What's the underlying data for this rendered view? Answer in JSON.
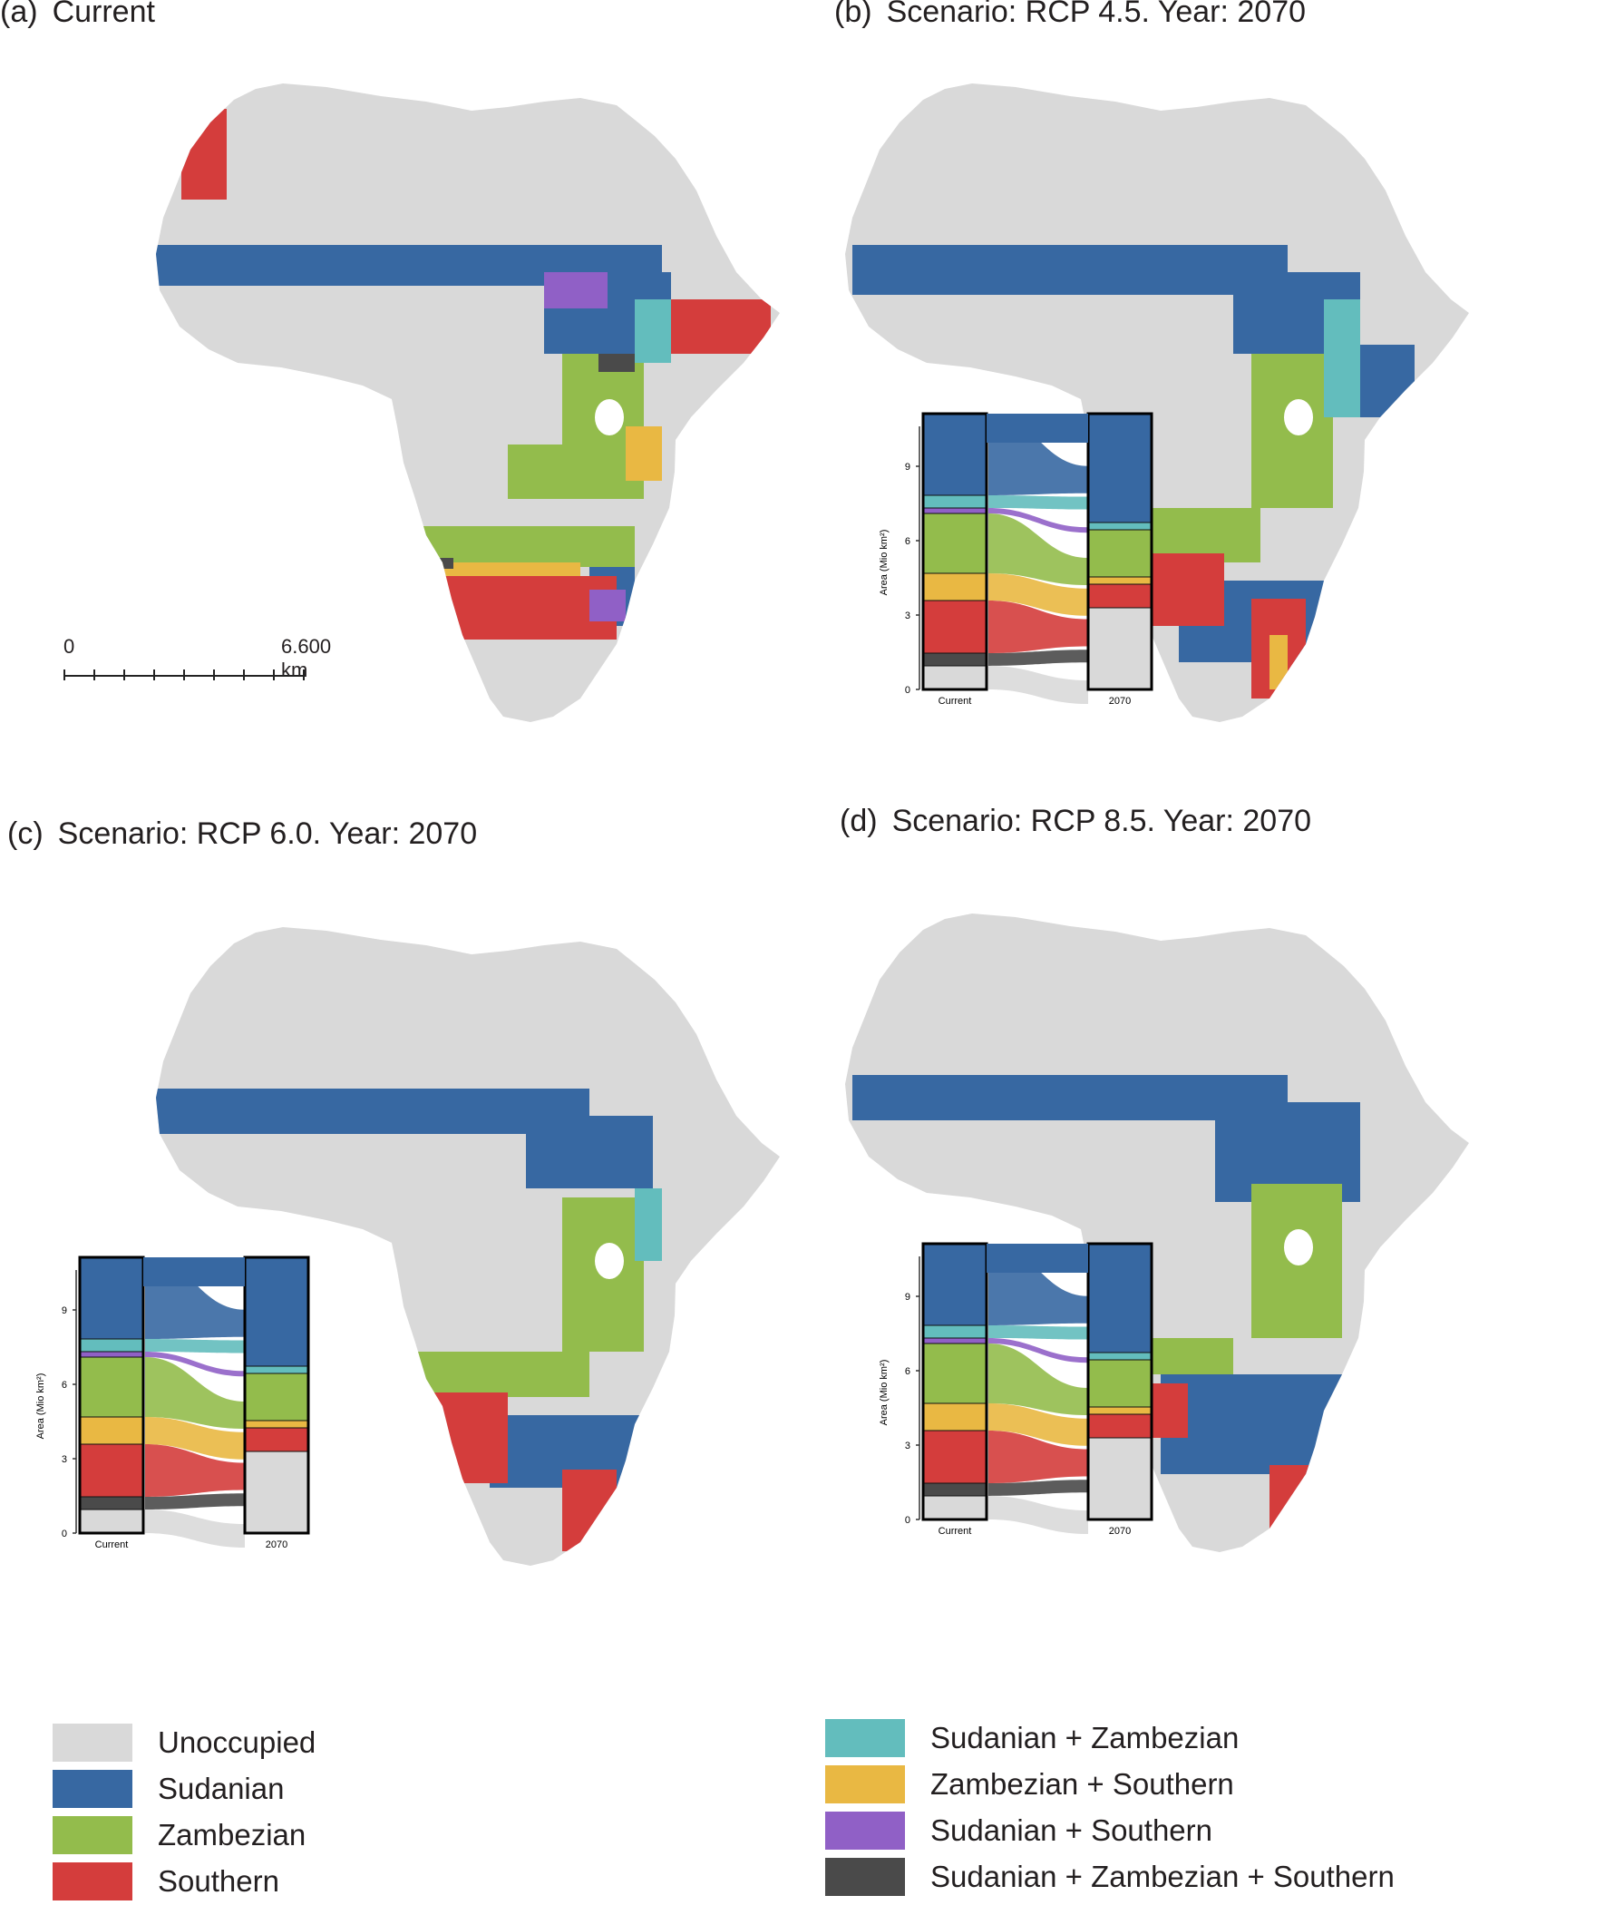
{
  "panels": [
    {
      "id": "a",
      "label": "(a)",
      "title": "Current"
    },
    {
      "id": "b",
      "label": "(b)",
      "title": "Scenario: RCP 4.5. Year: 2070"
    },
    {
      "id": "c",
      "label": "(c)",
      "title": "Scenario: RCP 6.0. Year: 2070"
    },
    {
      "id": "d",
      "label": "(d)",
      "title": "Scenario: RCP 8.5. Year: 2070"
    }
  ],
  "scalebar": {
    "start": "0",
    "end": "6.600 km"
  },
  "alluvial": {
    "y_axis_label": "Area",
    "y_axis_unit": "(Mio km²)",
    "y_ticks": [
      "0",
      "3",
      "6",
      "9"
    ],
    "x_labels": [
      "Current",
      "2070"
    ]
  },
  "legend": {
    "left": [
      {
        "label": "Unoccupied",
        "color": "#d9d9d9"
      },
      {
        "label": "Sudanian",
        "color": "#3768a2"
      },
      {
        "label": "Zambezian",
        "color": "#93bc4c"
      },
      {
        "label": "Southern",
        "color": "#d43d3c"
      }
    ],
    "right": [
      {
        "label": "Sudanian + Zambezian",
        "color": "#63bdbd"
      },
      {
        "label": "Zambezian + Southern",
        "color": "#e9b843"
      },
      {
        "label": "Sudanian + Southern",
        "color": "#9060c6"
      },
      {
        "label": "Sudanian + Zambezian + Southern",
        "color": "#4a4a4a"
      }
    ]
  },
  "colors": {
    "unoccupied": "#d9d9d9",
    "sudanian": "#3768a2",
    "zambezian": "#93bc4c",
    "southern": "#d43d3c",
    "sud_zam": "#63bdbd",
    "zam_sou": "#e9b843",
    "sud_sou": "#9060c6",
    "all_three": "#4a4a4a"
  }
}
